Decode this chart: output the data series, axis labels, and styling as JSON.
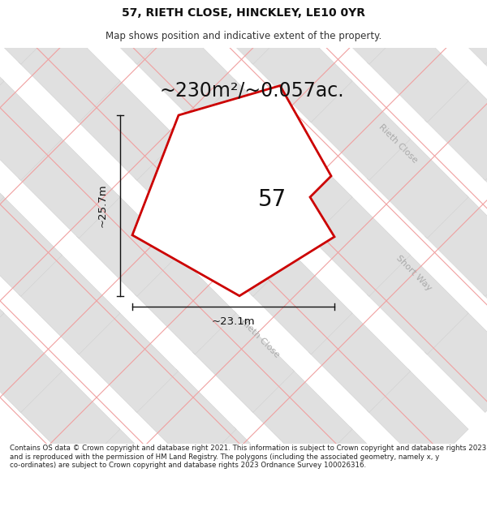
{
  "title": "57, RIETH CLOSE, HINCKLEY, LE10 0YR",
  "subtitle": "Map shows position and indicative extent of the property.",
  "area_label": "~230m²/~0.057ac.",
  "width_label": "~23.1m",
  "height_label": "~25.7m",
  "plot_number": "57",
  "footer": "Contains OS data © Crown copyright and database right 2021. This information is subject to Crown copyright and database rights 2023 and is reproduced with the permission of HM Land Registry. The polygons (including the associated geometry, namely x, y co-ordinates) are subject to Crown copyright and database rights 2023 Ordnance Survey 100026316.",
  "bg_color": "#ffffff",
  "map_bg": "#ffffff",
  "parcel_fill": "#e0e0e0",
  "parcel_edge": "#cccccc",
  "road_line_color": "#f0a0a0",
  "plot_fill": "#f2f2f2",
  "plot_edge": "#cc0000",
  "dim_color": "#111111",
  "road_label_color": "#aaaaaa",
  "title_fontsize": 10,
  "subtitle_fontsize": 8.5,
  "area_fontsize": 17,
  "plot_number_fontsize": 20,
  "dim_fontsize": 9.5,
  "road_label_fontsize": 8,
  "footer_fontsize": 6.2
}
